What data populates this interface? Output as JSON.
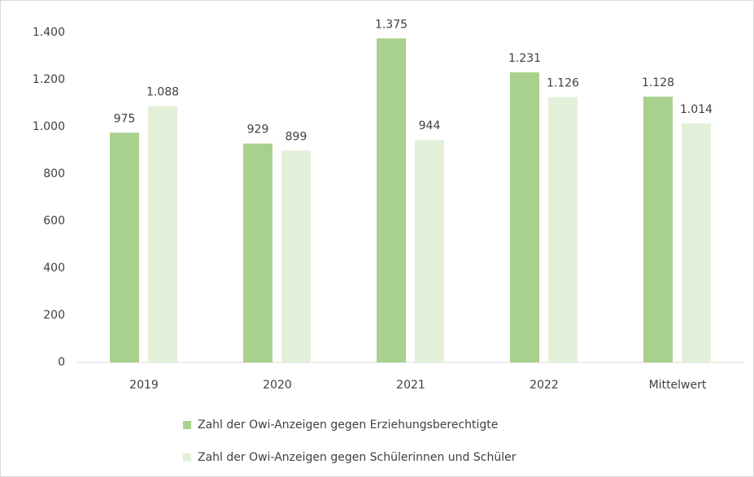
{
  "chart_data": {
    "type": "bar",
    "categories": [
      "2019",
      "2020",
      "2021",
      "2022",
      "Mittelwert"
    ],
    "series": [
      {
        "name": "Zahl der Owi-Anzeigen gegen Erziehungsberechtigte",
        "color": "#a9d18e",
        "values": [
          975,
          929,
          1375,
          1231,
          1128
        ],
        "value_labels": [
          "975",
          "929",
          "1.375",
          "1.231",
          "1.128"
        ]
      },
      {
        "name": "Zahl der Owi-Anzeigen gegen Schülerinnen und Schüler",
        "color": "#e2f0d9",
        "values": [
          1088,
          899,
          944,
          1126,
          1014
        ],
        "value_labels": [
          "1.088",
          "899",
          "944",
          "1.126",
          "1.014"
        ]
      }
    ],
    "ylim": [
      0,
      1400
    ],
    "yticks": [
      0,
      200,
      400,
      600,
      800,
      {
        "value": 1000,
        "label": "1.000"
      },
      {
        "value": 1200,
        "label": "1.200"
      },
      {
        "value": 1400,
        "label": "1.400"
      }
    ],
    "grid": false,
    "legend": "bottom"
  }
}
